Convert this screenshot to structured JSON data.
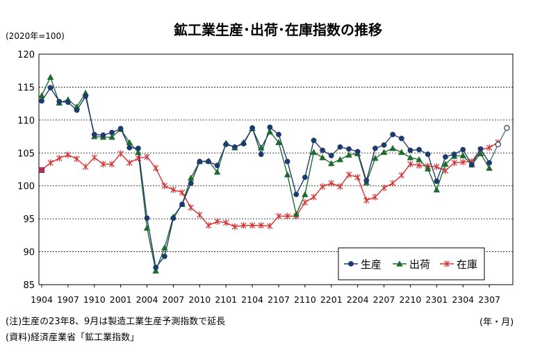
{
  "chart_data": {
    "type": "line",
    "title": "鉱工業生産･出荷･在庫指数の推移",
    "ylabel": "(2020年=100)",
    "xlabel": "(年・月)",
    "ylim": [
      85,
      120
    ],
    "yticks": [
      85,
      90,
      95,
      100,
      105,
      110,
      115,
      120
    ],
    "grid": true,
    "legend_position": "bottom-right",
    "x_tick_labels": [
      "1904",
      "1907",
      "1910",
      "2001",
      "2004",
      "2007",
      "2010",
      "2101",
      "2104",
      "2107",
      "2110",
      "2201",
      "2204",
      "2207",
      "2210",
      "2301",
      "2304",
      "2307"
    ],
    "x_start": "1904",
    "x_count": 54,
    "series": [
      {
        "name": "生産",
        "color": "#1f3a6e",
        "marker": "circle",
        "values": [
          112.9,
          114.9,
          112.8,
          112.7,
          111.5,
          113.6,
          107.8,
          107.7,
          108.1,
          108.7,
          105.8,
          105.7,
          95.1,
          87.6,
          89.3,
          95.1,
          97.2,
          100.4,
          103.7,
          103.7,
          103.1,
          106.3,
          105.9,
          106.4,
          108.8,
          104.8,
          108.9,
          107.8,
          103.7,
          98.7,
          101.3,
          106.9,
          105.4,
          104.6,
          105.9,
          105.6,
          105.2,
          100.8,
          105.7,
          106.2,
          107.8,
          107.2,
          105.4,
          105.5,
          104.8,
          100.7,
          104.4,
          104.8,
          105.5,
          103.2,
          105.6,
          103.5,
          106.3,
          108.8
        ],
        "forecast_from_index": 52
      },
      {
        "name": "出荷",
        "color": "#1e6b2e",
        "marker": "triangle",
        "values": [
          113.7,
          116.5,
          112.6,
          113.1,
          112.0,
          114.1,
          107.5,
          107.4,
          107.4,
          108.6,
          106.6,
          105.1,
          93.6,
          87.1,
          90.6,
          95.3,
          97.2,
          101.2,
          103.7,
          103.8,
          102.1,
          106.5,
          105.8,
          106.6,
          108.7,
          105.8,
          108.2,
          106.6,
          101.7,
          95.7,
          98.7,
          105.1,
          104.3,
          103.4,
          104.0,
          104.7,
          104.9,
          100.5,
          104.2,
          105.1,
          105.7,
          105.1,
          104.3,
          104.0,
          102.6,
          99.4,
          103.3,
          104.5,
          104.6,
          103.2,
          104.9,
          102.7,
          null,
          null
        ]
      },
      {
        "name": "在庫",
        "color": "#d43030",
        "marker": "star",
        "values": [
          102.4,
          103.5,
          104.2,
          104.7,
          104.1,
          102.9,
          104.3,
          103.3,
          103.3,
          104.9,
          103.5,
          104.2,
          104.4,
          102.7,
          100.0,
          99.4,
          99.0,
          96.7,
          95.6,
          94.0,
          94.6,
          94.4,
          93.8,
          94.0,
          94.0,
          94.0,
          93.9,
          95.4,
          95.4,
          95.4,
          97.5,
          98.3,
          99.9,
          100.4,
          99.9,
          101.7,
          101.3,
          97.8,
          98.3,
          99.7,
          100.4,
          101.6,
          103.3,
          103.1,
          103.0,
          102.9,
          102.3,
          103.5,
          103.6,
          103.7,
          105.5,
          105.8,
          106.6,
          null
        ],
        "first_point_marker": "square"
      }
    ],
    "notes": [
      "(注)生産の23年8、9月は製造工業生産予測指数で延長",
      "(資料)経済産業省「鉱工業指数」"
    ]
  }
}
